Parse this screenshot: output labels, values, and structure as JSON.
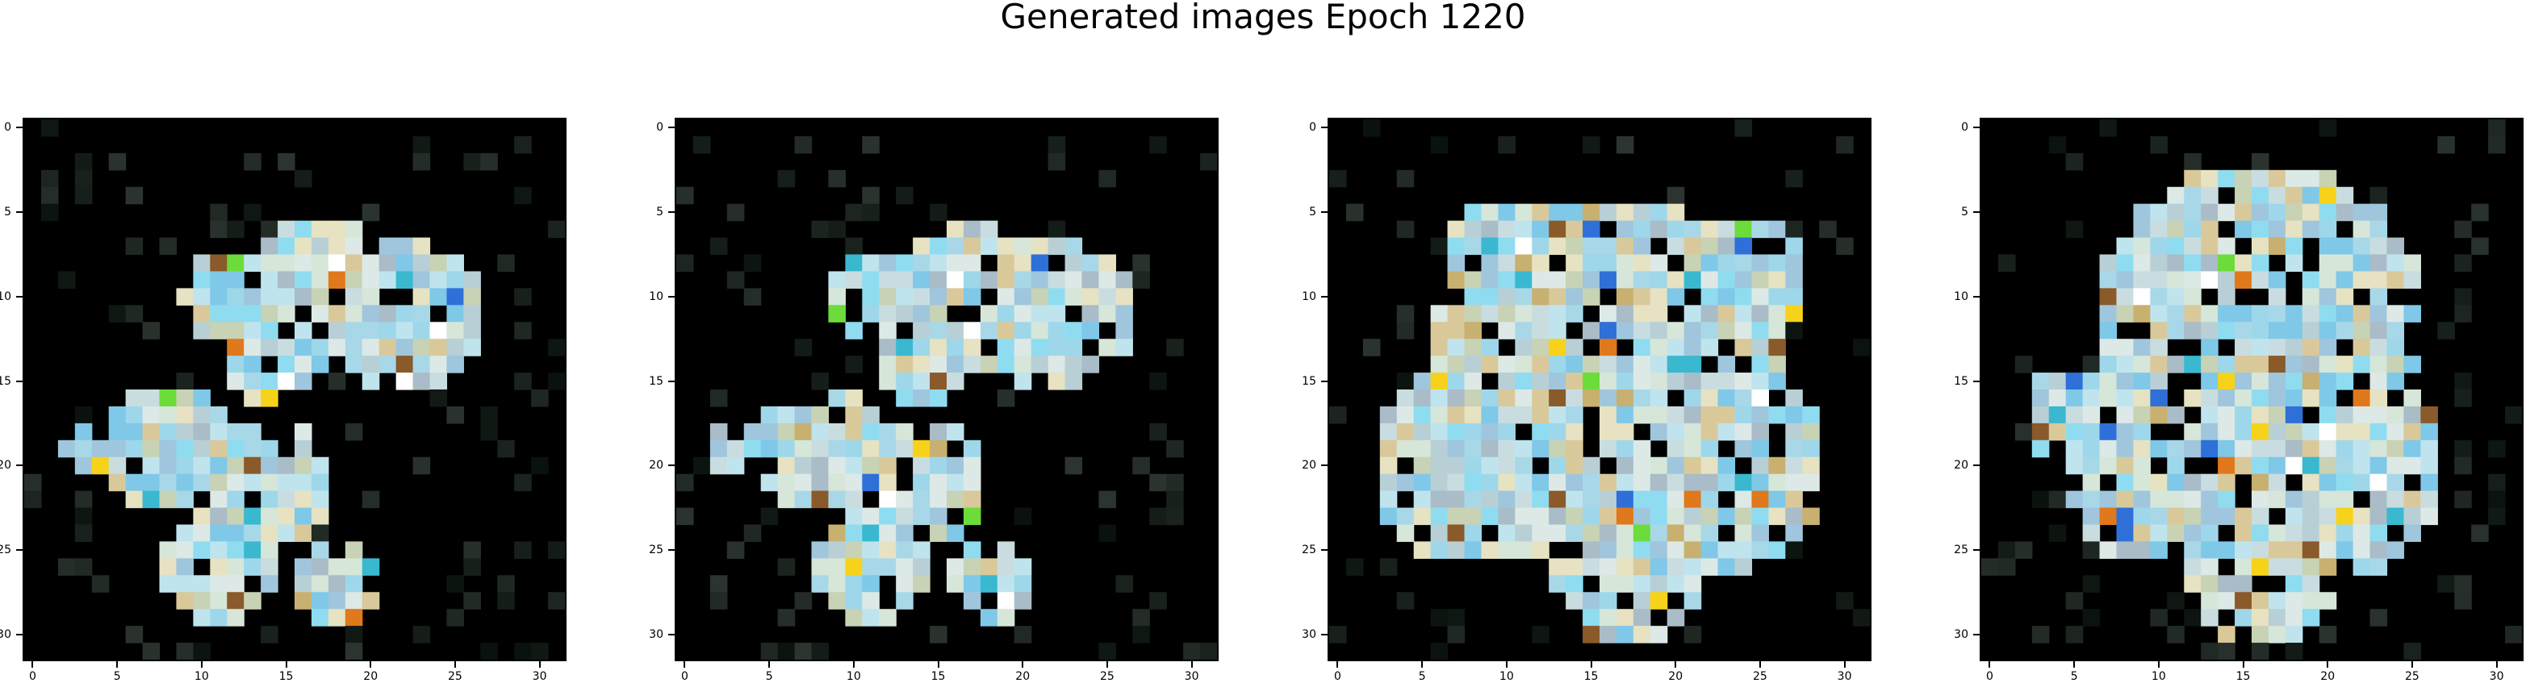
{
  "figure": {
    "title": "Generated images Epoch 1220"
  },
  "images": [
    {
      "name": "generated-image-1",
      "grid": [
        32,
        32
      ],
      "x_ticks": [
        "0",
        "5",
        "10",
        "15",
        "20",
        "25",
        "30"
      ],
      "y_ticks": [
        "0",
        "5",
        "10",
        "15",
        "20",
        "25",
        "30"
      ]
    },
    {
      "name": "generated-image-2",
      "grid": [
        32,
        32
      ],
      "x_ticks": [
        "0",
        "5",
        "10",
        "15",
        "20",
        "25",
        "30"
      ],
      "y_ticks": [
        "0",
        "5",
        "10",
        "15",
        "20",
        "25",
        "30"
      ]
    },
    {
      "name": "generated-image-3",
      "grid": [
        32,
        32
      ],
      "x_ticks": [
        "0",
        "5",
        "10",
        "15",
        "20",
        "25",
        "30"
      ],
      "y_ticks": [
        "0",
        "5",
        "10",
        "15",
        "20",
        "25",
        "30"
      ]
    },
    {
      "name": "generated-image-4",
      "grid": [
        32,
        32
      ],
      "x_ticks": [
        "0",
        "5",
        "10",
        "15",
        "20",
        "25",
        "30"
      ],
      "y_ticks": [
        "0",
        "5",
        "10",
        "15",
        "20",
        "25",
        "30"
      ]
    }
  ],
  "colors": {
    "background": "#000000",
    "accent_cyan": "#8fdcf0",
    "accent_cream": "#e6e2c2",
    "accent_orange": "#e0781c",
    "accent_yellow": "#f7d21a",
    "accent_green": "#6bdc3a"
  }
}
